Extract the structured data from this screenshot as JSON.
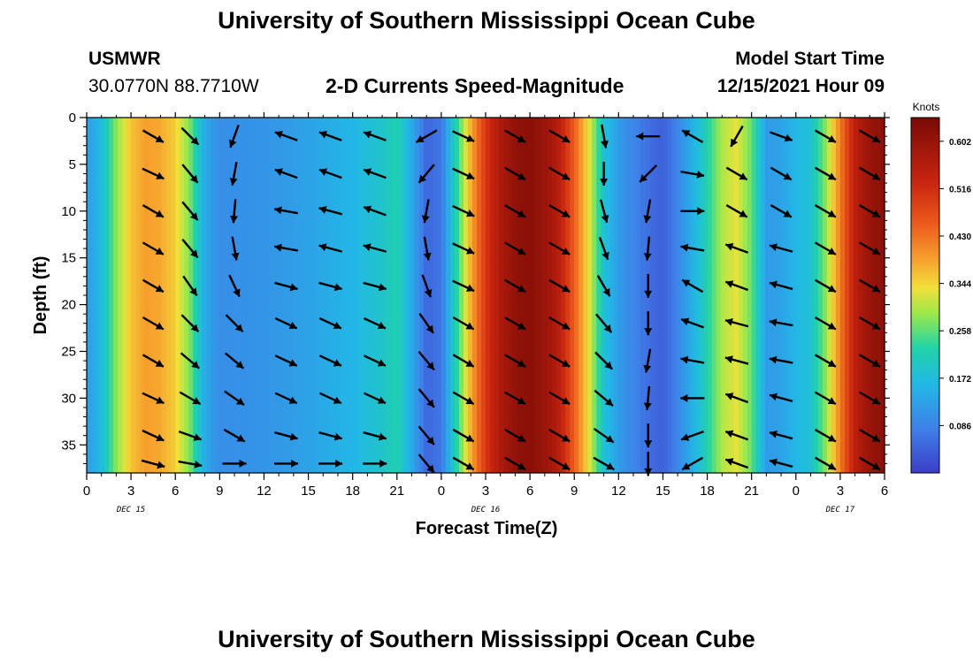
{
  "header": {
    "title": "University of Southern Mississippi Ocean Cube",
    "station_name": "USMWR",
    "station_coords": "30.0770N  88.7710W",
    "plot_title": "2-D Currents Speed-Magnitude",
    "model_start_label": "Model Start Time",
    "model_start_value": "12/15/2021 Hour 09"
  },
  "footer": {
    "title": "University of Southern Mississippi Ocean Cube"
  },
  "chart_data": {
    "type": "heatmap",
    "title": "2-D Currents Speed-Magnitude",
    "xlabel": "Forecast Time(Z)",
    "ylabel": "Depth (ft)",
    "colorbar_label": "Knots",
    "x_tick_labels": [
      "0",
      "3",
      "6",
      "9",
      "12",
      "15",
      "18",
      "21",
      "0",
      "3",
      "6",
      "9",
      "12",
      "15",
      "18",
      "21",
      "0",
      "3",
      "6"
    ],
    "x_date_labels": [
      {
        "hour_index": 12,
        "label": "DEC 15"
      },
      {
        "hour_index": 36,
        "label": "DEC 16"
      },
      {
        "hour_index": 60,
        "label": "DEC 17"
      }
    ],
    "y_ticks": [
      0,
      5,
      10,
      15,
      20,
      25,
      30,
      35
    ],
    "ylim": [
      0,
      38
    ],
    "hours_total": 54,
    "colorbar_ticks": [
      "0.602",
      "0.516",
      "0.430",
      "0.344",
      "0.258",
      "0.172",
      "0.086"
    ],
    "colorbar_range": [
      0,
      0.645
    ],
    "speed_profile": [
      {
        "h": 0,
        "v": 0.12
      },
      {
        "h": 1,
        "v": 0.17
      },
      {
        "h": 2,
        "v": 0.28
      },
      {
        "h": 3,
        "v": 0.36
      },
      {
        "h": 4,
        "v": 0.39
      },
      {
        "h": 5,
        "v": 0.38
      },
      {
        "h": 6,
        "v": 0.35
      },
      {
        "h": 7,
        "v": 0.27
      },
      {
        "h": 8,
        "v": 0.14
      },
      {
        "h": 9,
        "v": 0.1
      },
      {
        "h": 12,
        "v": 0.11
      },
      {
        "h": 15,
        "v": 0.13
      },
      {
        "h": 18,
        "v": 0.16
      },
      {
        "h": 20,
        "v": 0.19
      },
      {
        "h": 21,
        "v": 0.22
      },
      {
        "h": 22,
        "v": 0.14
      },
      {
        "h": 23,
        "v": 0.05
      },
      {
        "h": 24,
        "v": 0.07
      },
      {
        "h": 25,
        "v": 0.22
      },
      {
        "h": 26,
        "v": 0.38
      },
      {
        "h": 27,
        "v": 0.5
      },
      {
        "h": 28,
        "v": 0.57
      },
      {
        "h": 29,
        "v": 0.61
      },
      {
        "h": 30,
        "v": 0.62
      },
      {
        "h": 31,
        "v": 0.6
      },
      {
        "h": 32,
        "v": 0.55
      },
      {
        "h": 33,
        "v": 0.45
      },
      {
        "h": 34,
        "v": 0.33
      },
      {
        "h": 35,
        "v": 0.18
      },
      {
        "h": 36,
        "v": 0.12
      },
      {
        "h": 37,
        "v": 0.09
      },
      {
        "h": 38,
        "v": 0.06
      },
      {
        "h": 39,
        "v": 0.04
      },
      {
        "h": 40,
        "v": 0.09
      },
      {
        "h": 41,
        "v": 0.15
      },
      {
        "h": 42,
        "v": 0.22
      },
      {
        "h": 43,
        "v": 0.3
      },
      {
        "h": 44,
        "v": 0.33
      },
      {
        "h": 45,
        "v": 0.26
      },
      {
        "h": 46,
        "v": 0.12
      },
      {
        "h": 47,
        "v": 0.13
      },
      {
        "h": 48,
        "v": 0.16
      },
      {
        "h": 49,
        "v": 0.18
      },
      {
        "h": 50,
        "v": 0.28
      },
      {
        "h": 51,
        "v": 0.42
      },
      {
        "h": 52,
        "v": 0.55
      },
      {
        "h": 53,
        "v": 0.6
      },
      {
        "h": 54,
        "v": 0.62
      }
    ],
    "vector_hours": [
      4.5,
      7,
      10,
      13.5,
      16.5,
      19.5,
      23,
      25.5,
      29,
      32,
      35,
      38,
      41,
      44,
      47,
      50,
      53
    ],
    "vector_depths": [
      2,
      6,
      10,
      14,
      18,
      22,
      26,
      30,
      34,
      37
    ],
    "vector_angles_deg": [
      [
        30,
        45,
        110,
        200,
        200,
        200,
        150,
        25,
        30,
        30,
        80,
        180,
        210,
        120,
        20,
        30,
        30
      ],
      [
        25,
        50,
        100,
        200,
        200,
        200,
        130,
        25,
        30,
        30,
        90,
        135,
        10,
        30,
        30,
        30,
        30
      ],
      [
        30,
        50,
        95,
        190,
        195,
        200,
        100,
        25,
        30,
        30,
        75,
        100,
        0,
        30,
        30,
        30,
        30
      ],
      [
        30,
        50,
        80,
        190,
        195,
        195,
        80,
        25,
        30,
        30,
        70,
        95,
        190,
        200,
        195,
        30,
        30
      ],
      [
        30,
        55,
        65,
        15,
        15,
        15,
        70,
        25,
        30,
        30,
        60,
        90,
        210,
        200,
        195,
        30,
        30
      ],
      [
        30,
        45,
        45,
        25,
        25,
        25,
        55,
        30,
        30,
        30,
        50,
        90,
        200,
        195,
        190,
        30,
        30
      ],
      [
        30,
        40,
        40,
        25,
        25,
        25,
        50,
        30,
        30,
        30,
        45,
        100,
        190,
        195,
        190,
        30,
        30
      ],
      [
        25,
        30,
        35,
        25,
        25,
        25,
        50,
        30,
        30,
        30,
        40,
        95,
        180,
        200,
        195,
        30,
        30
      ],
      [
        25,
        20,
        30,
        15,
        15,
        15,
        50,
        30,
        30,
        30,
        35,
        90,
        160,
        200,
        195,
        30,
        30
      ],
      [
        15,
        10,
        0,
        0,
        0,
        0,
        50,
        30,
        30,
        30,
        30,
        90,
        150,
        200,
        195,
        30,
        30
      ]
    ]
  }
}
